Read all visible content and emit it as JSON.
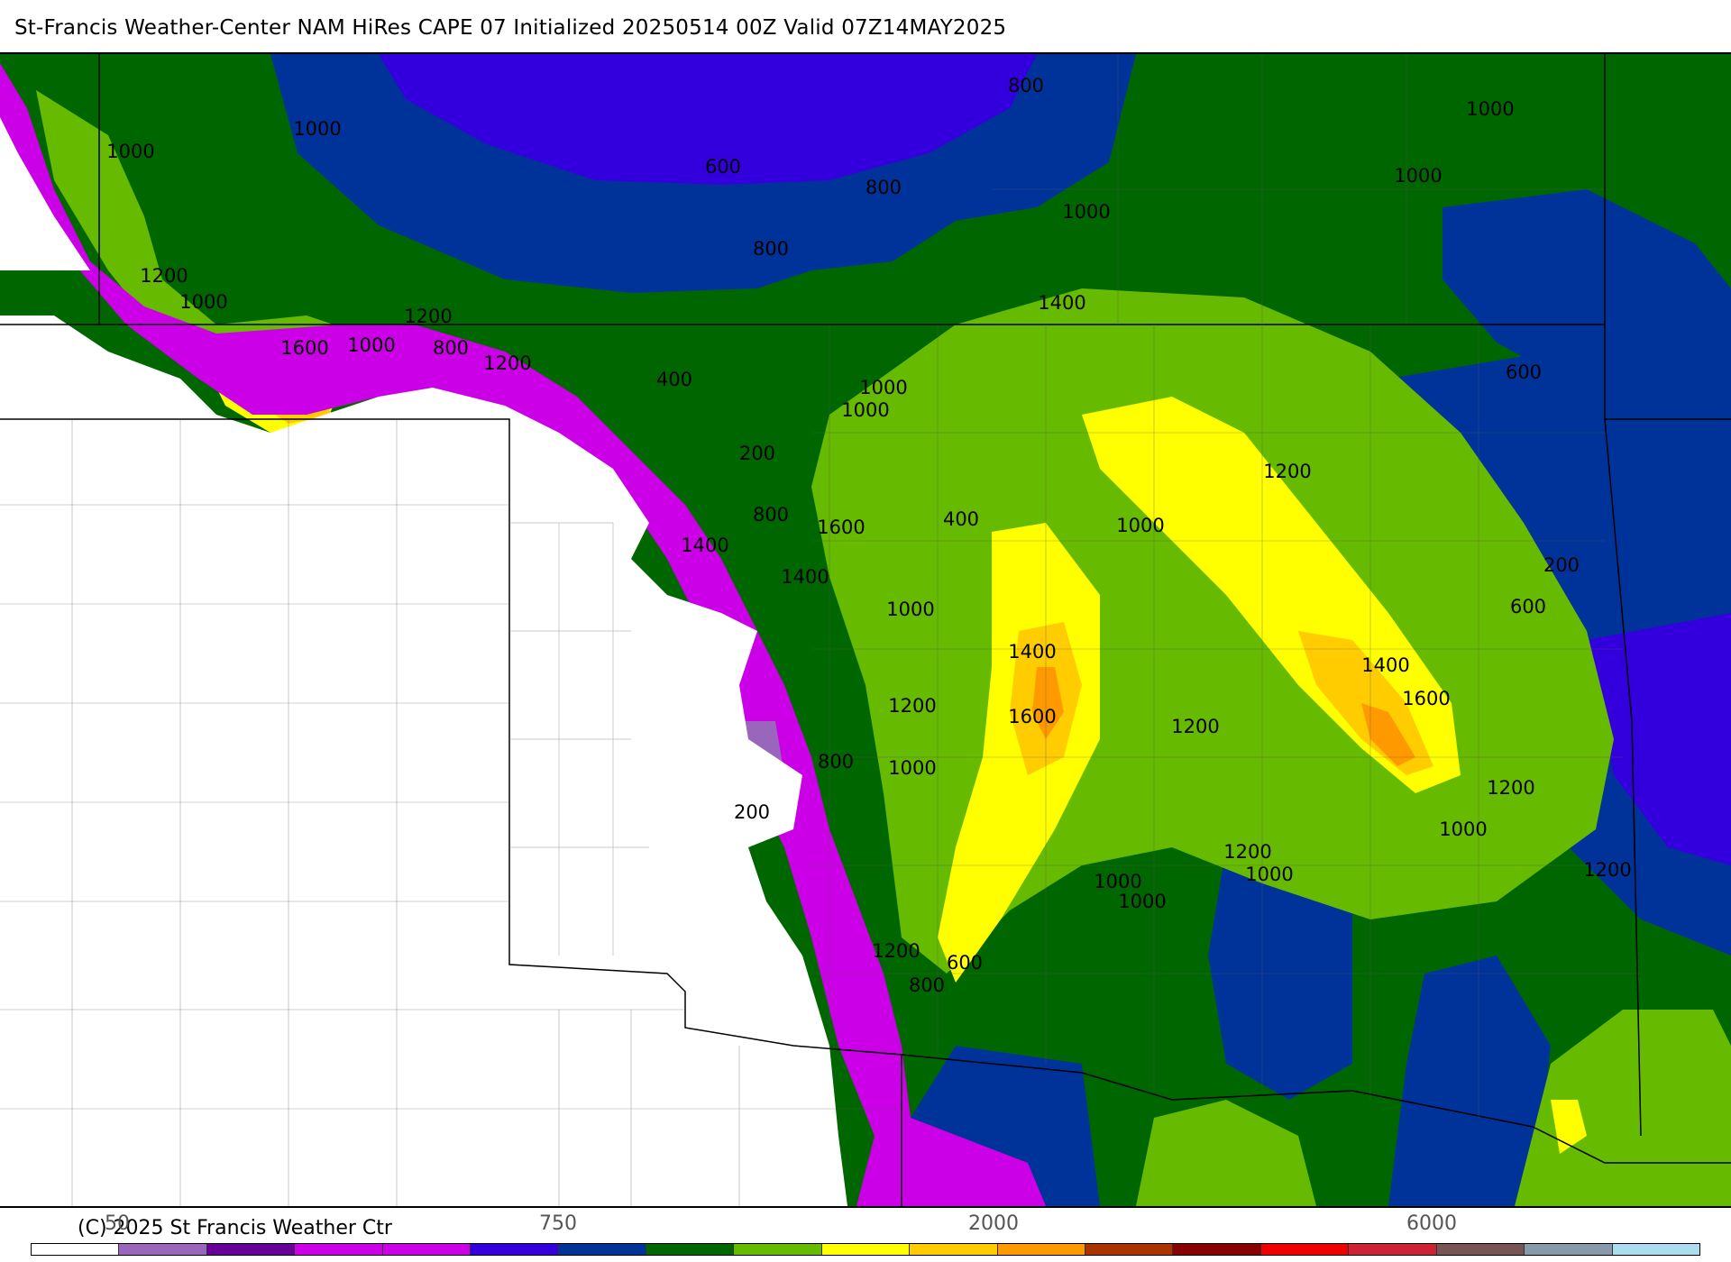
{
  "title": "St-Francis Weather-Center NAM HiRes CAPE  07 Initialized 20250514 00Z Valid 07Z14MAY2025",
  "copyright": "(C) 2025 St Francis Weather Ctr",
  "map": {
    "fill_colors": {
      "white": "#ffffff",
      "magenta": "#cc00e6",
      "purple_light": "#9966bb",
      "purple_dark": "#660099",
      "violet": "#3300dd",
      "blue": "#003399",
      "dark_green": "#006600",
      "green": "#66bb00",
      "yellow": "#ffff00",
      "gold": "#ffcc00",
      "orange": "#ff9900"
    },
    "contour_labels": [
      "1000",
      "1000",
      "800",
      "600",
      "800",
      "1000",
      "1000",
      "1000",
      "800",
      "1200",
      "1400",
      "1000",
      "1600",
      "1200",
      "1000",
      "800",
      "1200",
      "400",
      "600",
      "1000",
      "1000",
      "1200",
      "200",
      "800",
      "1600",
      "400",
      "1000",
      "1400",
      "1400",
      "200",
      "600",
      "1000",
      "1400",
      "1200",
      "1600",
      "1400",
      "1600",
      "1200",
      "800",
      "1000",
      "1200",
      "200",
      "1000",
      "1200",
      "1000",
      "1000",
      "1200",
      "1000",
      "1200",
      "600",
      "800",
      "400"
    ]
  },
  "colorbar": {
    "colors": [
      "#ffffff",
      "#9966bb",
      "#660099",
      "#cc00e6",
      "#cc00e6",
      "#3300dd",
      "#003399",
      "#006600",
      "#66bb00",
      "#ffff00",
      "#ffcc00",
      "#ff9900",
      "#aa3300",
      "#880000",
      "#ee0000",
      "#cc2233",
      "#775555",
      "#8899aa",
      "#aaddee"
    ],
    "tick_labels": [
      "50",
      "750",
      "2000",
      "6000"
    ]
  }
}
